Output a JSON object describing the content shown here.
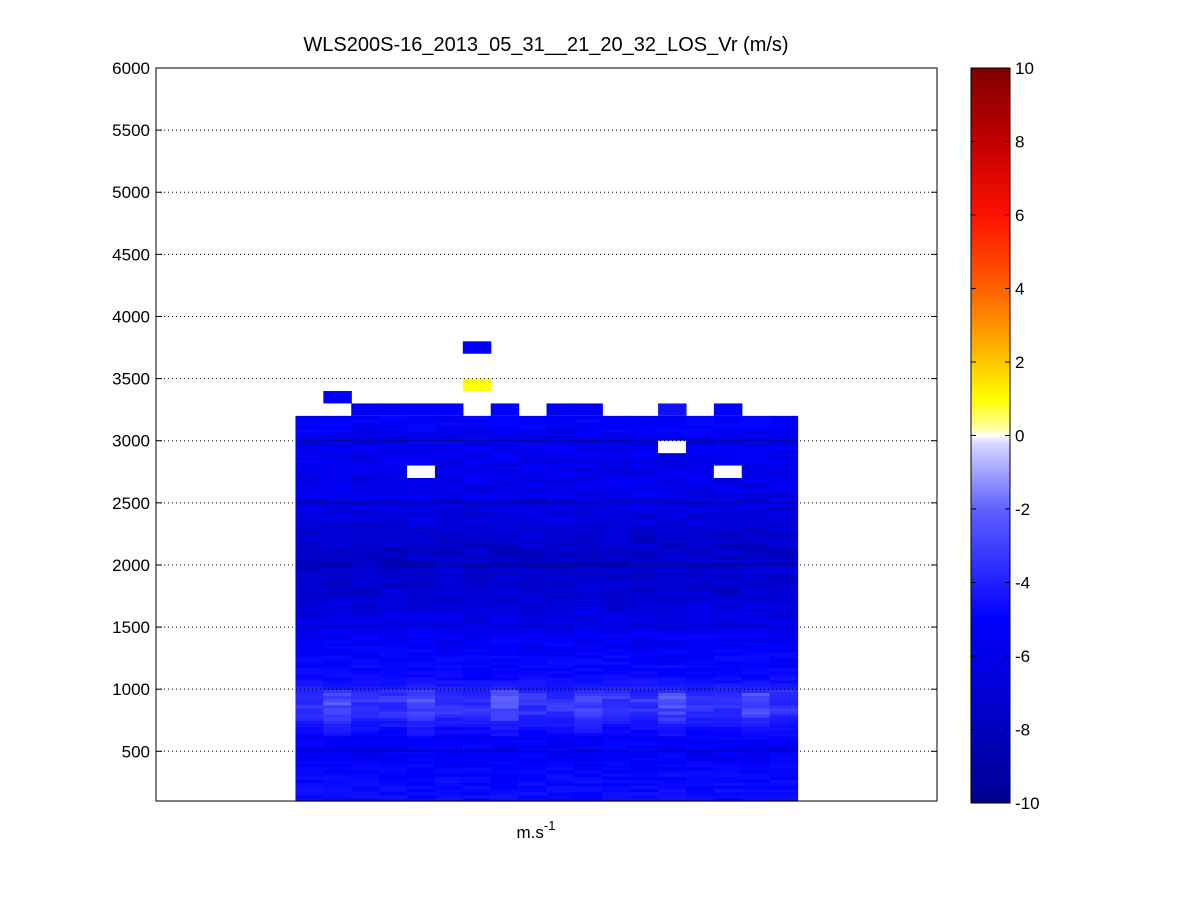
{
  "chart_data": {
    "type": "heatmap",
    "title": "WLS200S-16_2013_05_31__21_20_32_LOS_Vr (m/s)",
    "xlabel_base": "m.s",
    "xlabel_sup": "-1",
    "ylabel": "",
    "ylim": [
      100,
      6000
    ],
    "yticks": [
      500,
      1000,
      1500,
      2000,
      2500,
      3000,
      3500,
      4000,
      4500,
      5000,
      5500,
      6000
    ],
    "grid": true,
    "n_columns": 18,
    "data_columns": [
      5,
      22
    ],
    "profile_start_height": 100,
    "range_gate_m": 25,
    "profile_top_m": 3200,
    "vertical_profile_mean_ms": [
      {
        "height": 200,
        "value": -6.5
      },
      {
        "height": 500,
        "value": -7.2
      },
      {
        "height": 650,
        "value": -6.8
      },
      {
        "height": 800,
        "value": -5.0
      },
      {
        "height": 950,
        "value": -4.8
      },
      {
        "height": 1100,
        "value": -6.6
      },
      {
        "height": 1500,
        "value": -7.4
      },
      {
        "height": 1800,
        "value": -8.2
      },
      {
        "height": 2100,
        "value": -8.4
      },
      {
        "height": 2500,
        "value": -7.6
      },
      {
        "height": 3000,
        "value": -7.3
      },
      {
        "height": 3200,
        "value": -7.0
      }
    ],
    "extra_cells": [
      {
        "column": 11,
        "height": 3750,
        "value": -7.2
      },
      {
        "column": 6,
        "height": 3350,
        "value": -7.2
      },
      {
        "column": 11,
        "height": 3450,
        "value": 1.4
      },
      {
        "column": 7,
        "height": 3250,
        "value": -7.2
      },
      {
        "column": 8,
        "height": 3250,
        "value": -7.2
      },
      {
        "column": 9,
        "height": 3250,
        "value": -7.0
      },
      {
        "column": 10,
        "height": 3250,
        "value": -7.0
      },
      {
        "column": 12,
        "height": 3250,
        "value": -7.0
      },
      {
        "column": 14,
        "height": 3250,
        "value": -7.2
      },
      {
        "column": 15,
        "height": 3250,
        "value": -7.2
      },
      {
        "column": 18,
        "height": 3250,
        "value": -6.2
      },
      {
        "column": 20,
        "height": 3250,
        "value": -7.0
      }
    ],
    "masked_cells": [
      {
        "column": 9,
        "height": 2750
      },
      {
        "column": 18,
        "height": 2950
      },
      {
        "column": 20,
        "height": 2750
      }
    ],
    "colorbar": {
      "range": [
        -10,
        10
      ],
      "ticks": [
        -10,
        -8,
        -6,
        -4,
        -2,
        0,
        2,
        4,
        6,
        8,
        10
      ],
      "colormap": "blue-white-red (jet-like)",
      "zero_color": "#ffffff"
    },
    "colors": {
      "deep_blue": "#00008f",
      "blue": "#0000ff",
      "light_blue": "#b8b8ff",
      "white": "#ffffff",
      "yellow": "#ffff00",
      "orange": "#ff8000",
      "red": "#ff0000",
      "dark_red": "#800000"
    }
  }
}
